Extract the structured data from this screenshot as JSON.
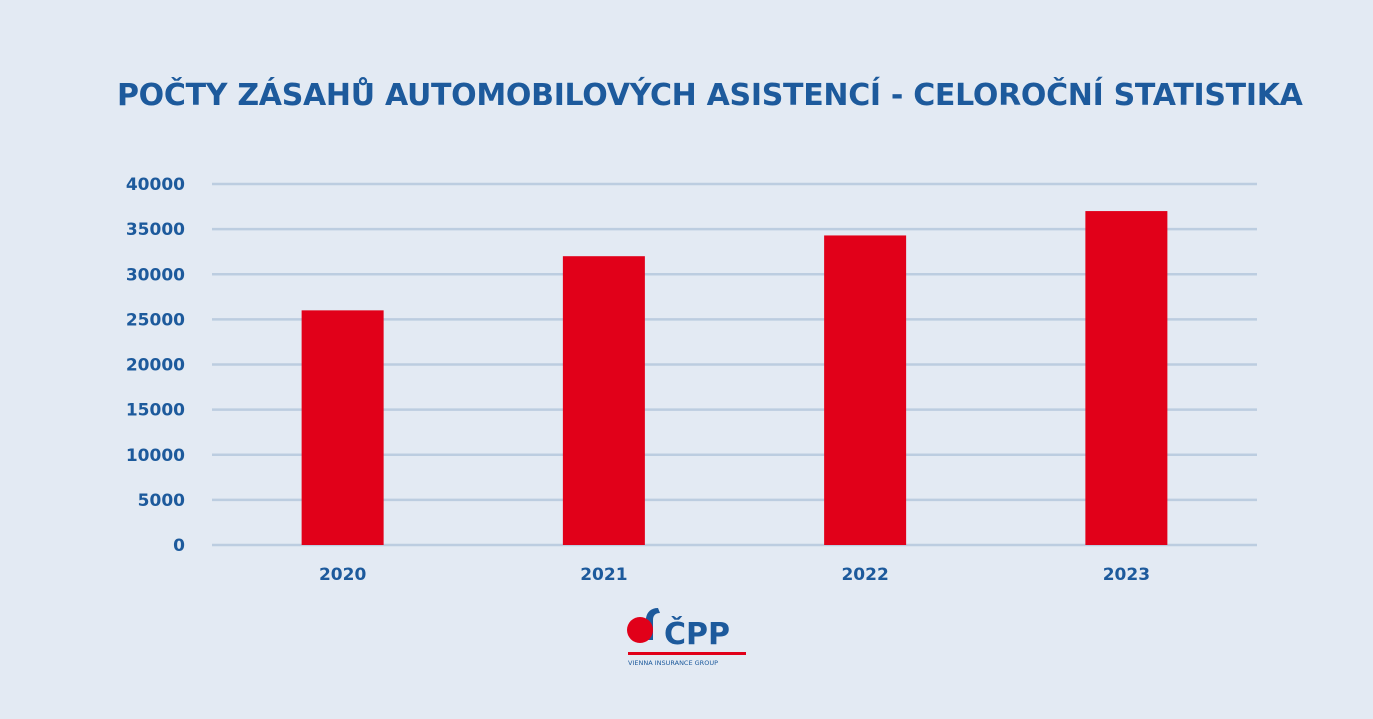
{
  "title": "POČTY ZÁSAHŮ AUTOMOBILOVÝCH ASISTENCÍ - CELOROČNÍ STATISTIKA",
  "colors": {
    "background": "#e3eaf3",
    "text": "#1d5a9c",
    "bar": "#e10019",
    "grid": "#bccde0"
  },
  "chart_data": {
    "type": "bar",
    "title": "POČTY ZÁSAHŮ AUTOMOBILOVÝCH ASISTENCÍ - CELOROČNÍ STATISTIKA",
    "categories": [
      "2020",
      "2021",
      "2022",
      "2023"
    ],
    "values": [
      26000,
      32000,
      34300,
      37000
    ],
    "xlabel": "",
    "ylabel": "",
    "ylim": [
      0,
      40000
    ],
    "yticks": [
      "0",
      "5000",
      "10000",
      "15000",
      "20000",
      "25000",
      "30000",
      "35000",
      "40000"
    ],
    "grid": true,
    "legend": "none"
  },
  "logo": {
    "text": "ČPP",
    "tagline": "VIENNA INSURANCE GROUP",
    "icon": "cpp-logo-icon"
  }
}
